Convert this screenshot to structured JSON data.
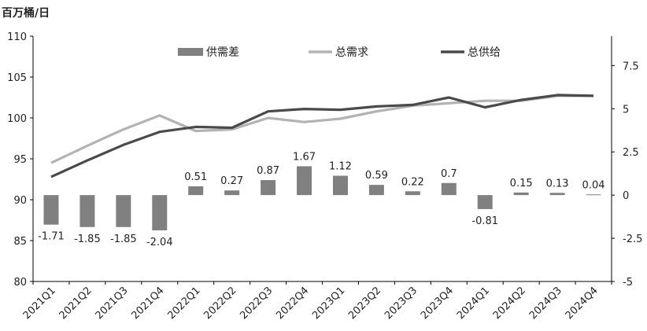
{
  "chart_data": {
    "type": "bar+line",
    "unit_label": "百万桶/日",
    "categories": [
      "2021Q1",
      "2021Q2",
      "2021Q3",
      "2021Q4",
      "2022Q1",
      "2022Q2",
      "2022Q3",
      "2022Q4",
      "2023Q1",
      "2023Q2",
      "2023Q3",
      "2023Q4",
      "2024Q1",
      "2024Q2",
      "2024Q3",
      "2024Q4"
    ],
    "series": [
      {
        "name": "供需差",
        "type": "bar",
        "axis": "right",
        "color": "#808080",
        "values": [
          -1.71,
          -1.85,
          -1.85,
          -2.04,
          0.51,
          0.27,
          0.87,
          1.67,
          1.12,
          0.59,
          0.22,
          0.7,
          -0.81,
          0.15,
          0.13,
          0.04
        ],
        "labels": [
          "-1.71",
          "-1.85",
          "-1.85",
          "-2.04",
          "0.51",
          "0.27",
          "0.87",
          "1.67",
          "1.12",
          "0.59",
          "0.22",
          "0.7",
          "-0.81",
          "0.15",
          "0.13",
          "0.04"
        ]
      },
      {
        "name": "总需求",
        "type": "line",
        "axis": "left",
        "color": "#b3b3b3",
        "values": [
          94.5,
          96.6,
          98.6,
          100.3,
          98.4,
          98.6,
          100.0,
          99.5,
          99.9,
          100.8,
          101.5,
          101.8,
          102.1,
          102.1,
          102.7,
          102.7
        ]
      },
      {
        "name": "总供给",
        "type": "line",
        "axis": "left",
        "color": "#4a4a4a",
        "values": [
          92.8,
          94.8,
          96.7,
          98.3,
          98.9,
          98.8,
          100.8,
          101.1,
          101.0,
          101.4,
          101.6,
          102.5,
          101.3,
          102.2,
          102.8,
          102.7
        ]
      }
    ],
    "y_left": {
      "min": 80,
      "max": 110,
      "ticks": [
        80,
        85,
        90,
        95,
        100,
        105,
        110
      ],
      "tick_labels": [
        "80",
        "85",
        "90",
        "95",
        "100",
        "105",
        "110"
      ]
    },
    "y_right": {
      "min": -5,
      "max": 9.2,
      "ticks": [
        -5,
        -2.5,
        0,
        2.5,
        5,
        7.5
      ],
      "tick_labels": [
        "-5",
        "-2.5",
        "0",
        "2.5",
        "5",
        "7.5"
      ]
    },
    "grid": false,
    "legend_position": "top-right"
  }
}
